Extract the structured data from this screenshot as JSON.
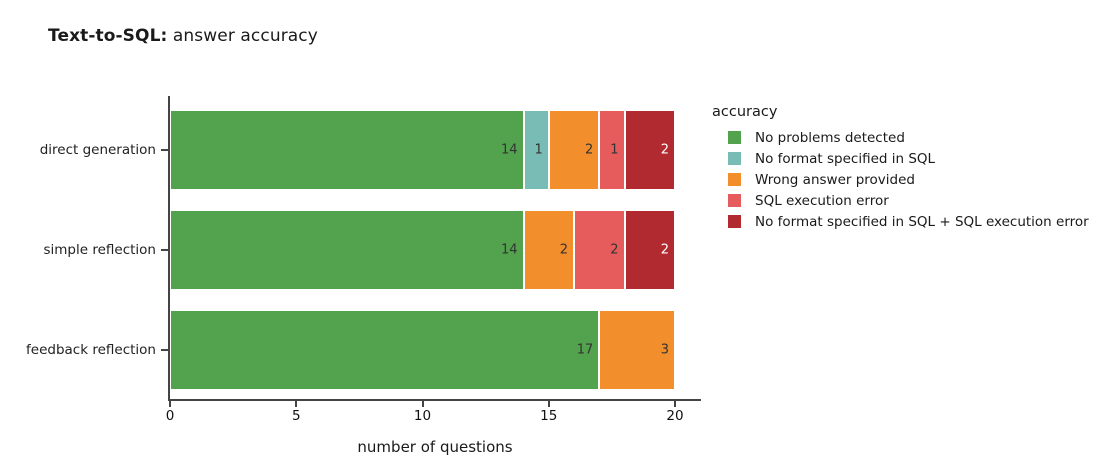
{
  "title": {
    "prefix_bold": "Text-to-SQL:",
    "suffix": " answer accuracy"
  },
  "chart_data": {
    "type": "bar",
    "orientation": "horizontal",
    "stacked": true,
    "title": "Text-to-SQL: answer accuracy",
    "categories": [
      "direct generation",
      "simple reflection",
      "feedback reflection"
    ],
    "series": [
      {
        "name": "No problems detected",
        "color": "#53a24e",
        "label_color": "#333333",
        "values": [
          14,
          14,
          17
        ]
      },
      {
        "name": "No format specified in SQL",
        "color": "#79bcb6",
        "label_color": "#333333",
        "values": [
          1,
          0,
          0
        ]
      },
      {
        "name": "Wrong answer provided",
        "color": "#f28e2b",
        "label_color": "#333333",
        "values": [
          2,
          2,
          3
        ]
      },
      {
        "name": "SQL execution error",
        "color": "#e65c5c",
        "label_color": "#333333",
        "values": [
          1,
          2,
          0
        ]
      },
      {
        "name": "No format specified in SQL + SQL execution error",
        "color": "#b02a30",
        "label_color": "#ffffff",
        "values": [
          2,
          2,
          0
        ]
      }
    ],
    "totals": [
      20,
      20,
      20
    ],
    "xlabel": "number of questions",
    "ylabel": "",
    "xlim": [
      0,
      21
    ],
    "xticks": [
      0,
      5,
      10,
      15,
      20
    ],
    "grid": false,
    "legend_title": "accuracy",
    "legend_position": "right",
    "axis_color": "#444444"
  }
}
